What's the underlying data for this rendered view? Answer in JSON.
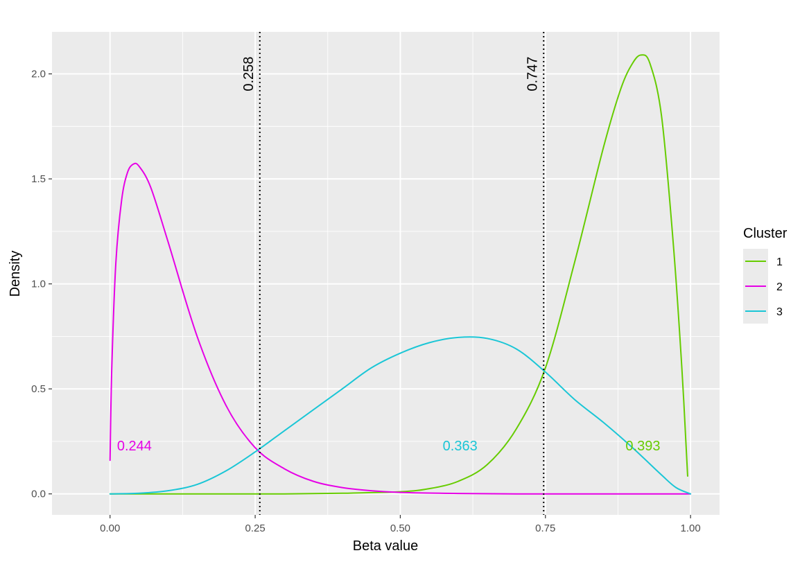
{
  "chart_data": {
    "type": "line",
    "xlabel": "Beta value",
    "ylabel": "Density",
    "xlim": [
      -0.1,
      1.05
    ],
    "ylim": [
      -0.1,
      2.2
    ],
    "x_ticks": [
      0.0,
      0.25,
      0.5,
      0.75,
      1.0
    ],
    "x_tick_labels": [
      "0.00",
      "0.25",
      "0.50",
      "0.75",
      "1.00"
    ],
    "y_ticks": [
      0.0,
      0.5,
      1.0,
      1.5,
      2.0
    ],
    "y_tick_labels": [
      "0.0",
      "0.5",
      "1.0",
      "1.5",
      "2.0"
    ],
    "grid": true,
    "legend": {
      "title": "Cluster",
      "position": "right"
    },
    "series": [
      {
        "name": "1",
        "color": "#66cc00",
        "label_text": "0.393",
        "label_at": [
          0.918,
          0.23
        ],
        "points": [
          [
            0.0,
            0.0
          ],
          [
            0.1,
            0.0
          ],
          [
            0.2,
            0.0
          ],
          [
            0.3,
            0.0
          ],
          [
            0.4,
            0.003
          ],
          [
            0.5,
            0.01
          ],
          [
            0.55,
            0.025
          ],
          [
            0.6,
            0.06
          ],
          [
            0.65,
            0.14
          ],
          [
            0.7,
            0.31
          ],
          [
            0.75,
            0.6
          ],
          [
            0.8,
            1.1
          ],
          [
            0.85,
            1.65
          ],
          [
            0.88,
            1.93
          ],
          [
            0.9,
            2.05
          ],
          [
            0.915,
            2.09
          ],
          [
            0.93,
            2.05
          ],
          [
            0.95,
            1.8
          ],
          [
            0.97,
            1.2
          ],
          [
            0.985,
            0.6
          ],
          [
            0.995,
            0.085
          ]
        ]
      },
      {
        "name": "2",
        "color": "#e600e6",
        "label_text": "0.244",
        "label_at": [
          0.042,
          0.23
        ],
        "points": [
          [
            0.0,
            0.16
          ],
          [
            0.003,
            0.6
          ],
          [
            0.01,
            1.1
          ],
          [
            0.02,
            1.4
          ],
          [
            0.03,
            1.53
          ],
          [
            0.04,
            1.57
          ],
          [
            0.05,
            1.56
          ],
          [
            0.07,
            1.46
          ],
          [
            0.1,
            1.2
          ],
          [
            0.15,
            0.75
          ],
          [
            0.2,
            0.42
          ],
          [
            0.25,
            0.22
          ],
          [
            0.3,
            0.12
          ],
          [
            0.35,
            0.06
          ],
          [
            0.4,
            0.03
          ],
          [
            0.45,
            0.015
          ],
          [
            0.5,
            0.007
          ],
          [
            0.6,
            0.002
          ],
          [
            0.7,
            0.0
          ],
          [
            0.8,
            0.0
          ],
          [
            0.9,
            0.0
          ],
          [
            1.0,
            0.0
          ]
        ]
      },
      {
        "name": "3",
        "color": "#1ac6d6",
        "label_text": "0.363",
        "label_at": [
          0.603,
          0.23
        ],
        "points": [
          [
            0.0,
            0.0
          ],
          [
            0.05,
            0.003
          ],
          [
            0.1,
            0.015
          ],
          [
            0.15,
            0.045
          ],
          [
            0.2,
            0.11
          ],
          [
            0.25,
            0.2
          ],
          [
            0.3,
            0.3
          ],
          [
            0.35,
            0.4
          ],
          [
            0.4,
            0.5
          ],
          [
            0.45,
            0.6
          ],
          [
            0.5,
            0.67
          ],
          [
            0.55,
            0.72
          ],
          [
            0.6,
            0.745
          ],
          [
            0.65,
            0.74
          ],
          [
            0.7,
            0.69
          ],
          [
            0.75,
            0.58
          ],
          [
            0.8,
            0.45
          ],
          [
            0.85,
            0.34
          ],
          [
            0.9,
            0.22
          ],
          [
            0.95,
            0.09
          ],
          [
            0.975,
            0.03
          ],
          [
            1.0,
            0.0
          ]
        ]
      }
    ],
    "vlines": [
      {
        "x": 0.258,
        "label": "0.258",
        "label_y": 2.0
      },
      {
        "x": 0.747,
        "label": "0.747",
        "label_y": 2.0
      }
    ]
  }
}
